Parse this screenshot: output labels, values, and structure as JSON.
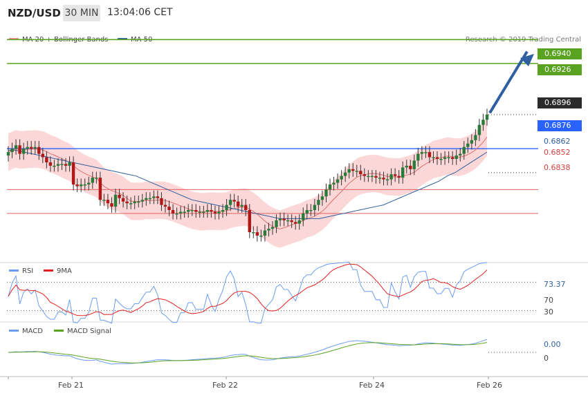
{
  "header": {
    "symbol": "NZD/USD",
    "timeframe": "30 MIN",
    "time": "13:04:06 CET"
  },
  "legend": {
    "ma20": "MA 20 + Bollinger Bands",
    "ma50": "MA 50",
    "credit": "Research © 2019 Trading Central"
  },
  "levels": {
    "l1": "0.6940",
    "l2": "0.6926",
    "last": "0.6896",
    "pivot": "0.6876",
    "s1": "0.6862",
    "s2": "0.6852",
    "s3": "0.6838"
  },
  "rsi": {
    "label": "RSI",
    "ma_label": "9MA",
    "value": "73.37",
    "t70": "70",
    "t30": "30"
  },
  "macd": {
    "label": "MACD",
    "signal_label": "MACD Signal",
    "value": "0.00",
    "t0": "0"
  },
  "xaxis": {
    "d1": "Feb 21",
    "d2": "Feb 22",
    "d3": "Feb 24",
    "d4": "Feb 26"
  },
  "colors": {
    "resistance": "#5aa320",
    "pivot": "#2962ff",
    "support": "#e06060",
    "ma50": "#2e5fa0",
    "bb": "#f9c9c9",
    "ma20": "#e07070",
    "up": "#2a7a3a",
    "down": "#b01818",
    "rsi": "#6a9cf0",
    "nine_ma": "#e02020",
    "macd_sig": "#5aa320"
  },
  "chart_data": {
    "type": "candlestick",
    "title": "NZD/USD 30 MIN",
    "ylim": [
      0.681,
      0.6945
    ],
    "x_ticks": [
      "Feb 21",
      "Feb 22",
      "Feb 24",
      "Feb 26"
    ],
    "closes": [
      0.6874,
      0.6876,
      0.6878,
      0.6873,
      0.6876,
      0.6877,
      0.6876,
      0.6877,
      0.6873,
      0.6871,
      0.6868,
      0.6866,
      0.6866,
      0.6867,
      0.6867,
      0.6866,
      0.6868,
      0.6855,
      0.6854,
      0.6855,
      0.6855,
      0.6856,
      0.6859,
      0.6859,
      0.6846,
      0.6846,
      0.6844,
      0.6842,
      0.6849,
      0.6847,
      0.6845,
      0.6844,
      0.6844,
      0.6845,
      0.6845,
      0.6846,
      0.6847,
      0.6847,
      0.6848,
      0.6847,
      0.6843,
      0.6842,
      0.684,
      0.6838,
      0.6838,
      0.6839,
      0.6839,
      0.684,
      0.684,
      0.6839,
      0.6839,
      0.6839,
      0.684,
      0.6839,
      0.6838,
      0.6839,
      0.684,
      0.6843,
      0.6846,
      0.6845,
      0.6842,
      0.6843,
      0.684,
      0.6827,
      0.6827,
      0.6825,
      0.6825,
      0.6828,
      0.6829,
      0.683,
      0.6834,
      0.6835,
      0.6834,
      0.6834,
      0.6833,
      0.6832,
      0.6834,
      0.6838,
      0.684,
      0.684,
      0.6843,
      0.6846,
      0.6848,
      0.6852,
      0.6855,
      0.6856,
      0.6858,
      0.686,
      0.6862,
      0.6864,
      0.6863,
      0.6863,
      0.6861,
      0.686,
      0.686,
      0.686,
      0.6859,
      0.6859,
      0.6858,
      0.6858,
      0.6861,
      0.686,
      0.6859,
      0.6865,
      0.6866,
      0.6864,
      0.6869,
      0.6873,
      0.6874,
      0.6874,
      0.6871,
      0.6871,
      0.687,
      0.687,
      0.6871,
      0.6871,
      0.687,
      0.6872,
      0.6873,
      0.6877,
      0.6879,
      0.6881,
      0.6884,
      0.689,
      0.6893,
      0.6896
    ],
    "ma50": [
      0.6875,
      0.6875,
      0.6874,
      0.6873,
      0.6872,
      0.6871,
      0.687,
      0.6869,
      0.6868,
      0.6867,
      0.6866,
      0.6865,
      0.6864,
      0.6863,
      0.6862,
      0.6861,
      0.686,
      0.6858,
      0.6856,
      0.6854,
      0.6852,
      0.685,
      0.6848,
      0.6846,
      0.6845,
      0.6844,
      0.6843,
      0.6842,
      0.6841,
      0.684,
      0.6839,
      0.6838,
      0.6837,
      0.6836,
      0.6835,
      0.6835,
      0.6835,
      0.6835,
      0.6835,
      0.6835,
      0.6836,
      0.6837,
      0.6838,
      0.6839,
      0.684,
      0.6841,
      0.6842,
      0.6843,
      0.6845,
      0.6847,
      0.6849,
      0.6851,
      0.6853,
      0.6855,
      0.6857,
      0.686,
      0.6862,
      0.6865,
      0.6868,
      0.6871,
      0.6874
    ],
    "series": [
      {
        "name": "MA 20 + Bollinger Bands"
      },
      {
        "name": "MA 50"
      }
    ],
    "rsi_ylim": [
      20,
      80
    ],
    "macd_ylim": [
      -0.0012,
      0.0008
    ]
  }
}
